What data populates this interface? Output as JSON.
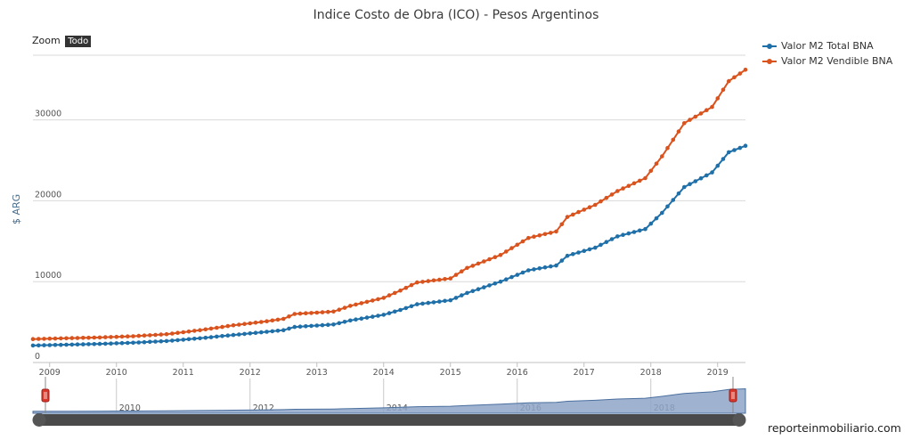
{
  "chart_data": {
    "type": "line",
    "title": "Indice Costo de Obra (ICO) - Pesos Argentinos",
    "ylabel": "$ ARG",
    "xlabel": "",
    "ylim": [
      0,
      38000
    ],
    "xlim": [
      "2008-10",
      "2019-06"
    ],
    "y_ticks": [
      "0",
      "10000",
      "20000",
      "30000"
    ],
    "x_ticks": [
      "2009",
      "2010",
      "2011",
      "2012",
      "2013",
      "2014",
      "2015",
      "2016",
      "2017",
      "2018",
      "2019"
    ],
    "grid": true,
    "legend_position": "top-right",
    "series": [
      {
        "name": "Valor M2 Total BNA",
        "color": "#1f6fa8",
        "points": [
          [
            "2008-10",
            2100
          ],
          [
            "2009-04",
            2200
          ],
          [
            "2009-10",
            2300
          ],
          [
            "2010-04",
            2450
          ],
          [
            "2010-10",
            2650
          ],
          [
            "2011-04",
            3000
          ],
          [
            "2011-10",
            3400
          ],
          [
            "2012-04",
            3800
          ],
          [
            "2012-07",
            4000
          ],
          [
            "2012-09",
            4400
          ],
          [
            "2013-04",
            4700
          ],
          [
            "2013-07",
            5200
          ],
          [
            "2014-01",
            5900
          ],
          [
            "2014-04",
            6500
          ],
          [
            "2014-07",
            7200
          ],
          [
            "2015-01",
            7700
          ],
          [
            "2015-04",
            8600
          ],
          [
            "2015-10",
            10000
          ],
          [
            "2016-03",
            11400
          ],
          [
            "2016-08",
            12000
          ],
          [
            "2016-10",
            13200
          ],
          [
            "2017-03",
            14200
          ],
          [
            "2017-07",
            15600
          ],
          [
            "2017-12",
            16500
          ],
          [
            "2018-03",
            18500
          ],
          [
            "2018-07",
            21700
          ],
          [
            "2018-12",
            23500
          ],
          [
            "2019-03",
            26000
          ],
          [
            "2019-06",
            26800
          ]
        ]
      },
      {
        "name": "Valor M2 Vendible BNA",
        "color": "#d9531e",
        "points": [
          [
            "2008-10",
            2900
          ],
          [
            "2009-04",
            3000
          ],
          [
            "2009-10",
            3100
          ],
          [
            "2010-04",
            3250
          ],
          [
            "2010-10",
            3500
          ],
          [
            "2011-04",
            4000
          ],
          [
            "2011-10",
            4600
          ],
          [
            "2012-04",
            5100
          ],
          [
            "2012-07",
            5400
          ],
          [
            "2012-09",
            6000
          ],
          [
            "2013-04",
            6300
          ],
          [
            "2013-07",
            7000
          ],
          [
            "2014-01",
            8000
          ],
          [
            "2014-04",
            8900
          ],
          [
            "2014-07",
            9900
          ],
          [
            "2015-01",
            10400
          ],
          [
            "2015-04",
            11700
          ],
          [
            "2015-10",
            13300
          ],
          [
            "2016-03",
            15400
          ],
          [
            "2016-08",
            16200
          ],
          [
            "2016-10",
            18000
          ],
          [
            "2017-03",
            19500
          ],
          [
            "2017-07",
            21200
          ],
          [
            "2017-12",
            22800
          ],
          [
            "2018-03",
            25500
          ],
          [
            "2018-07",
            29600
          ],
          [
            "2018-12",
            31600
          ],
          [
            "2019-03",
            34800
          ],
          [
            "2019-06",
            36200
          ]
        ]
      }
    ],
    "navigator": {
      "x_ticks": [
        "2010",
        "2012",
        "2014",
        "2016",
        "2018"
      ]
    }
  },
  "ui": {
    "zoom_label": "Zoom",
    "zoom_button": "Todo",
    "watermark": "reporteinmobiliario.com",
    "legend": [
      "Valor M2 Total BNA",
      "Valor M2 Vendible BNA"
    ],
    "colors": {
      "navigator_fill": "#8ea5c8",
      "navigator_line": "#4a6f9e",
      "handle": "#d9382c",
      "scrollbar": "#4a4a4a",
      "grid": "#d9d9d9"
    }
  }
}
